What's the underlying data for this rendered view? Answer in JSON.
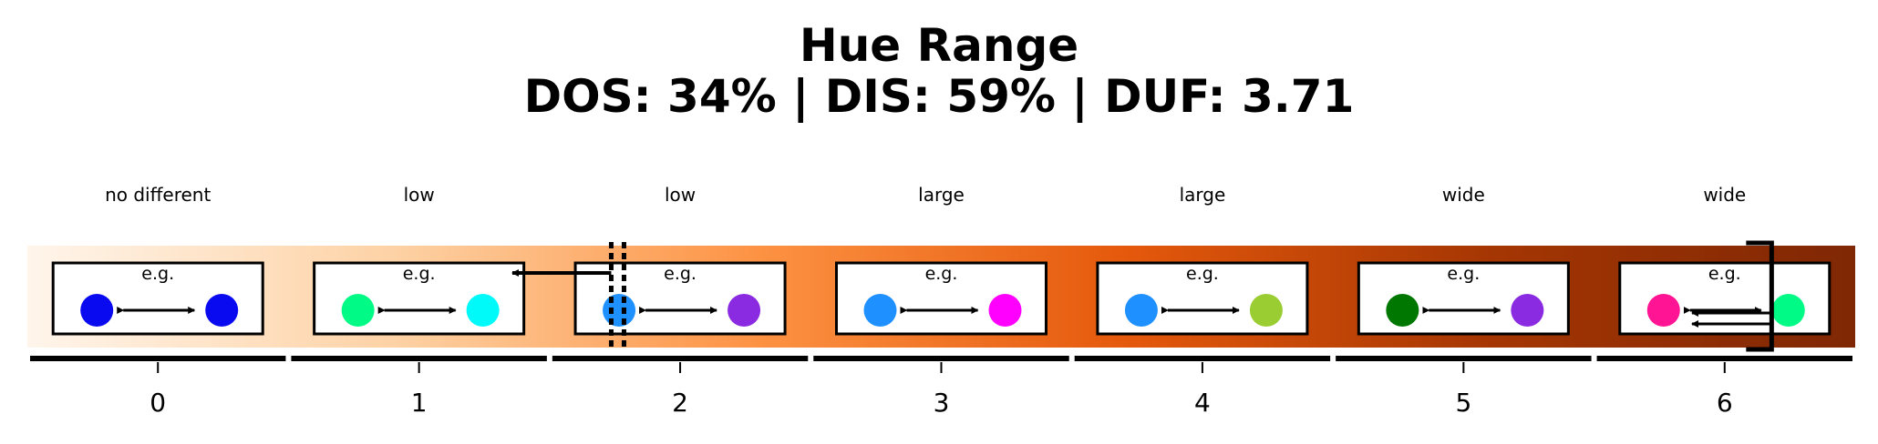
{
  "title": {
    "line1": "Hue Range",
    "line2": "DOS: 34% | DIS: 59% | DUF: 3.71"
  },
  "example_label": "e.g.",
  "bins": [
    {
      "tick": "0",
      "label": "no different",
      "colors": [
        "#0a0af0",
        "#0a0af0"
      ]
    },
    {
      "tick": "1",
      "label": "low",
      "colors": [
        "#00fa86",
        "#00fafa"
      ]
    },
    {
      "tick": "2",
      "label": "low",
      "colors": [
        "#1e90ff",
        "#8a2be2"
      ]
    },
    {
      "tick": "3",
      "label": "large",
      "colors": [
        "#1e90ff",
        "#ff00ff"
      ]
    },
    {
      "tick": "4",
      "label": "large",
      "colors": [
        "#1e90ff",
        "#9acd32"
      ]
    },
    {
      "tick": "5",
      "label": "wide",
      "colors": [
        "#007700",
        "#8a2be2"
      ]
    },
    {
      "tick": "6",
      "label": "wide",
      "colors": [
        "#ff1493",
        "#00fa86"
      ]
    }
  ],
  "gradient": {
    "from": "#fff5eb",
    "via": [
      "#fdd2a5",
      "#fd9243",
      "#e5590c",
      "#a53603"
    ],
    "to": "#7f2704"
  },
  "markers": {
    "dis_bin_position": 1.75,
    "duf_position": 6.18
  }
}
